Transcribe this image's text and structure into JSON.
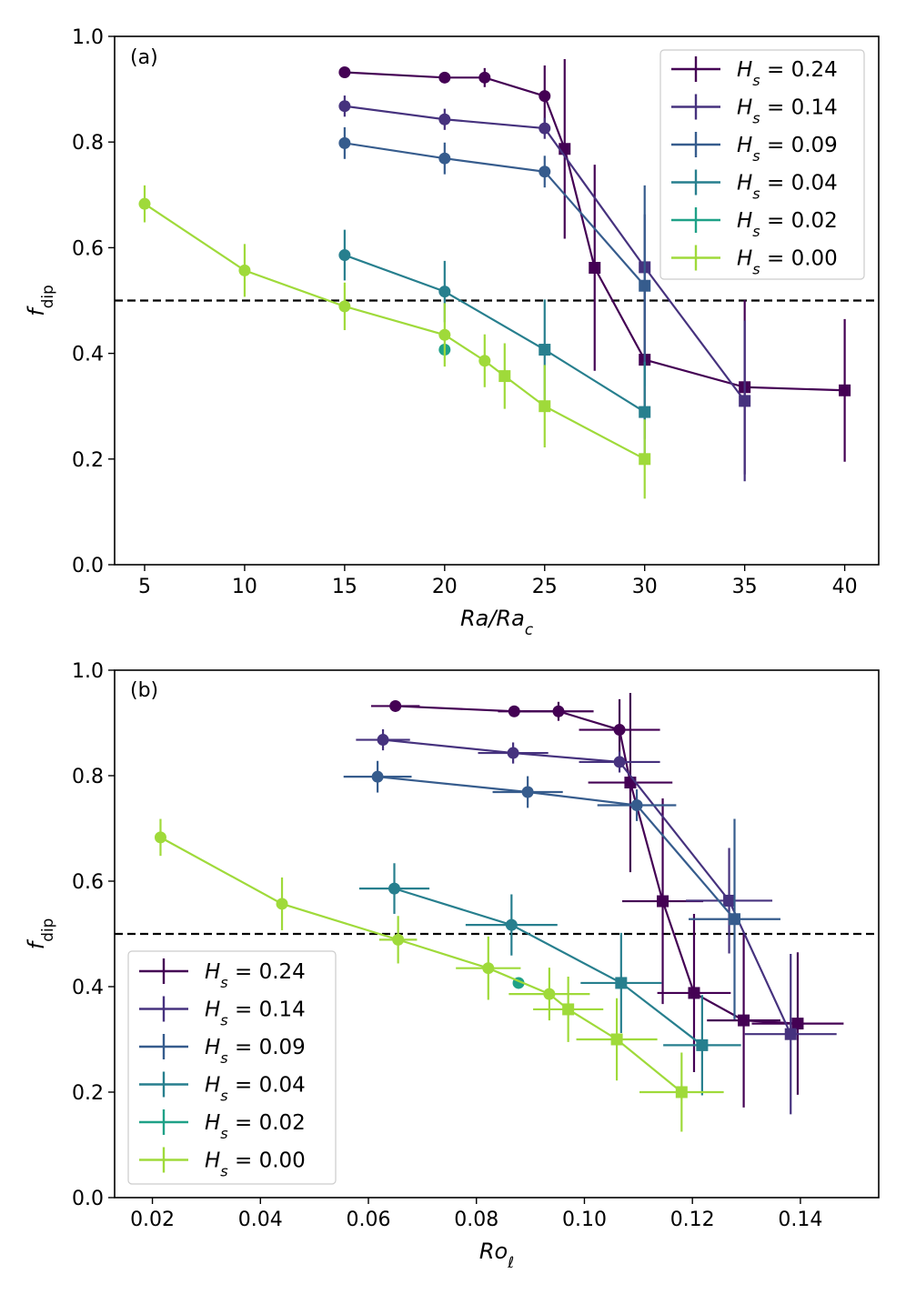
{
  "chart_data": [
    {
      "type": "line",
      "panel_label": "(a)",
      "xlabel": "Ra/Ra_c",
      "xlabel_main": "Ra/Ra",
      "xlabel_sub": "c",
      "ylabel_main": "f",
      "ylabel_sub": "dip",
      "xlim": [
        3.5,
        41.7
      ],
      "ylim": [
        0.0,
        1.0
      ],
      "xticks": [
        "5",
        "10",
        "15",
        "20",
        "25",
        "30",
        "35",
        "40"
      ],
      "xtick_values": [
        5,
        10,
        15,
        20,
        25,
        30,
        35,
        40
      ],
      "yticks": [
        "0.0",
        "0.2",
        "0.4",
        "0.6",
        "0.8",
        "1.0"
      ],
      "ytick_values": [
        0.0,
        0.2,
        0.4,
        0.6,
        0.8,
        1.0
      ],
      "reference_line_y": 0.5,
      "legend_position": "top-right",
      "series": [
        {
          "name": "H_s = 0.24",
          "label_prefix": "H",
          "label_sub": "s",
          "label_value": " = 0.24",
          "color": "#440154",
          "points": [
            {
              "x": 15,
              "y": 0.932,
              "yerr": 0.0,
              "marker": "circle"
            },
            {
              "x": 20,
              "y": 0.922,
              "yerr": 0.0,
              "marker": "circle"
            },
            {
              "x": 22,
              "y": 0.922,
              "yerr": 0.018,
              "marker": "circle"
            },
            {
              "x": 25,
              "y": 0.887,
              "yerr": 0.058,
              "marker": "circle"
            },
            {
              "x": 26,
              "y": 0.787,
              "yerr": 0.17,
              "marker": "square"
            },
            {
              "x": 27.5,
              "y": 0.562,
              "yerr": 0.195,
              "marker": "square"
            },
            {
              "x": 30,
              "y": 0.388,
              "yerr": 0.15,
              "marker": "square"
            },
            {
              "x": 35,
              "y": 0.336,
              "yerr": 0.165,
              "marker": "square"
            },
            {
              "x": 40,
              "y": 0.33,
              "yerr": 0.135,
              "marker": "square"
            }
          ]
        },
        {
          "name": "H_s = 0.14",
          "label_prefix": "H",
          "label_sub": "s",
          "label_value": " = 0.14",
          "color": "#46327e",
          "points": [
            {
              "x": 15,
              "y": 0.868,
              "yerr": 0.02,
              "marker": "circle"
            },
            {
              "x": 20,
              "y": 0.843,
              "yerr": 0.02,
              "marker": "circle"
            },
            {
              "x": 25,
              "y": 0.826,
              "yerr": 0.02,
              "marker": "circle"
            },
            {
              "x": 30,
              "y": 0.563,
              "yerr": 0.1,
              "marker": "square"
            },
            {
              "x": 35,
              "y": 0.31,
              "yerr": 0.152,
              "marker": "square"
            }
          ]
        },
        {
          "name": "H_s = 0.09",
          "label_prefix": "H",
          "label_sub": "s",
          "label_value": " = 0.09",
          "color": "#365c8d",
          "points": [
            {
              "x": 15,
              "y": 0.798,
              "yerr": 0.03,
              "marker": "circle"
            },
            {
              "x": 20,
              "y": 0.769,
              "yerr": 0.03,
              "marker": "circle"
            },
            {
              "x": 25,
              "y": 0.744,
              "yerr": 0.03,
              "marker": "circle"
            },
            {
              "x": 30,
              "y": 0.528,
              "yerr": 0.19,
              "marker": "square"
            }
          ]
        },
        {
          "name": "H_s = 0.04",
          "label_prefix": "H",
          "label_sub": "s",
          "label_value": " = 0.04",
          "color": "#277f8e",
          "points": [
            {
              "x": 15,
              "y": 0.586,
              "yerr": 0.048,
              "marker": "circle"
            },
            {
              "x": 20,
              "y": 0.517,
              "yerr": 0.058,
              "marker": "circle"
            },
            {
              "x": 25,
              "y": 0.407,
              "yerr": 0.095,
              "marker": "square"
            },
            {
              "x": 30,
              "y": 0.289,
              "yerr": 0.095,
              "marker": "square"
            }
          ]
        },
        {
          "name": "H_s = 0.02",
          "label_prefix": "H",
          "label_sub": "s",
          "label_value": " = 0.02",
          "color": "#1fa187",
          "points": [
            {
              "x": 20,
              "y": 0.407,
              "yerr": 0.0,
              "marker": "circle"
            }
          ]
        },
        {
          "name": "H_s = 0.00",
          "label_prefix": "H",
          "label_sub": "s",
          "label_value": " = 0.00",
          "color": "#9fda3a",
          "points": [
            {
              "x": 5,
              "y": 0.683,
              "yerr": 0.035,
              "marker": "circle"
            },
            {
              "x": 10,
              "y": 0.557,
              "yerr": 0.05,
              "marker": "circle"
            },
            {
              "x": 15,
              "y": 0.489,
              "yerr": 0.045,
              "marker": "circle"
            },
            {
              "x": 20,
              "y": 0.435,
              "yerr": 0.06,
              "marker": "circle"
            },
            {
              "x": 22,
              "y": 0.386,
              "yerr": 0.05,
              "marker": "circle"
            },
            {
              "x": 23,
              "y": 0.357,
              "yerr": 0.062,
              "marker": "square"
            },
            {
              "x": 25,
              "y": 0.3,
              "yerr": 0.078,
              "marker": "square"
            },
            {
              "x": 30,
              "y": 0.2,
              "yerr": 0.075,
              "marker": "square"
            }
          ]
        }
      ]
    },
    {
      "type": "line",
      "panel_label": "(b)",
      "xlabel": "Ro_ℓ",
      "xlabel_main": "Ro",
      "xlabel_sub": "ℓ",
      "ylabel_main": "f",
      "ylabel_sub": "dip",
      "xlim": [
        0.013,
        0.1545
      ],
      "ylim": [
        0.0,
        1.0
      ],
      "xticks": [
        "0.02",
        "0.04",
        "0.06",
        "0.08",
        "0.10",
        "0.12",
        "0.14"
      ],
      "xtick_values": [
        0.02,
        0.04,
        0.06,
        0.08,
        0.1,
        0.12,
        0.14
      ],
      "yticks": [
        "0.0",
        "0.2",
        "0.4",
        "0.6",
        "0.8",
        "1.0"
      ],
      "ytick_values": [
        0.0,
        0.2,
        0.4,
        0.6,
        0.8,
        1.0
      ],
      "reference_line_y": 0.5,
      "legend_position": "bottom-left",
      "series": [
        {
          "name": "H_s = 0.24",
          "label_prefix": "H",
          "label_sub": "s",
          "label_value": " = 0.24",
          "color": "#440154",
          "points": [
            {
              "x": 0.065,
              "y": 0.932,
              "xerr": 0.0045,
              "yerr": 0.0,
              "marker": "circle"
            },
            {
              "x": 0.087,
              "y": 0.922,
              "xerr": 0.003,
              "yerr": 0.0,
              "marker": "circle"
            },
            {
              "x": 0.0952,
              "y": 0.922,
              "xerr": 0.0065,
              "yerr": 0.018,
              "marker": "circle"
            },
            {
              "x": 0.1065,
              "y": 0.887,
              "xerr": 0.0075,
              "yerr": 0.058,
              "marker": "circle"
            },
            {
              "x": 0.1085,
              "y": 0.787,
              "xerr": 0.0078,
              "yerr": 0.17,
              "marker": "square"
            },
            {
              "x": 0.1145,
              "y": 0.562,
              "xerr": 0.0075,
              "yerr": 0.195,
              "marker": "square"
            },
            {
              "x": 0.1203,
              "y": 0.388,
              "xerr": 0.0068,
              "yerr": 0.15,
              "marker": "square"
            },
            {
              "x": 0.1295,
              "y": 0.336,
              "xerr": 0.0068,
              "yerr": 0.165,
              "marker": "square"
            },
            {
              "x": 0.1395,
              "y": 0.33,
              "xerr": 0.0085,
              "yerr": 0.135,
              "marker": "square"
            }
          ]
        },
        {
          "name": "H_s = 0.14",
          "label_prefix": "H",
          "label_sub": "s",
          "label_value": " = 0.14",
          "color": "#46327e",
          "points": [
            {
              "x": 0.0627,
              "y": 0.868,
              "xerr": 0.005,
              "yerr": 0.02,
              "marker": "circle"
            },
            {
              "x": 0.0868,
              "y": 0.843,
              "xerr": 0.0065,
              "yerr": 0.02,
              "marker": "circle"
            },
            {
              "x": 0.1065,
              "y": 0.826,
              "xerr": 0.0075,
              "yerr": 0.02,
              "marker": "circle"
            },
            {
              "x": 0.1268,
              "y": 0.563,
              "xerr": 0.008,
              "yerr": 0.1,
              "marker": "square"
            },
            {
              "x": 0.1382,
              "y": 0.31,
              "xerr": 0.0085,
              "yerr": 0.152,
              "marker": "square"
            }
          ]
        },
        {
          "name": "H_s = 0.09",
          "label_prefix": "H",
          "label_sub": "s",
          "label_value": " = 0.09",
          "color": "#365c8d",
          "points": [
            {
              "x": 0.0617,
              "y": 0.798,
              "xerr": 0.0063,
              "yerr": 0.03,
              "marker": "circle"
            },
            {
              "x": 0.0895,
              "y": 0.769,
              "xerr": 0.0065,
              "yerr": 0.03,
              "marker": "circle"
            },
            {
              "x": 0.1097,
              "y": 0.744,
              "xerr": 0.0073,
              "yerr": 0.03,
              "marker": "circle"
            },
            {
              "x": 0.1278,
              "y": 0.528,
              "xerr": 0.0085,
              "yerr": 0.19,
              "marker": "square"
            }
          ]
        },
        {
          "name": "H_s = 0.04",
          "label_prefix": "H",
          "label_sub": "s",
          "label_value": " = 0.04",
          "color": "#277f8e",
          "points": [
            {
              "x": 0.0648,
              "y": 0.586,
              "xerr": 0.0065,
              "yerr": 0.048,
              "marker": "circle"
            },
            {
              "x": 0.0865,
              "y": 0.517,
              "xerr": 0.0085,
              "yerr": 0.058,
              "marker": "circle"
            },
            {
              "x": 0.1068,
              "y": 0.407,
              "xerr": 0.0075,
              "yerr": 0.095,
              "marker": "square"
            },
            {
              "x": 0.1218,
              "y": 0.289,
              "xerr": 0.0072,
              "yerr": 0.095,
              "marker": "square"
            }
          ]
        },
        {
          "name": "H_s = 0.02",
          "label_prefix": "H",
          "label_sub": "s",
          "label_value": " = 0.02",
          "color": "#1fa187",
          "points": [
            {
              "x": 0.0878,
              "y": 0.407,
              "xerr": 0.0,
              "yerr": 0.0,
              "marker": "circle"
            }
          ]
        },
        {
          "name": "H_s = 0.00",
          "label_prefix": "H",
          "label_sub": "s",
          "label_value": " = 0.00",
          "color": "#9fda3a",
          "points": [
            {
              "x": 0.0215,
              "y": 0.683,
              "xerr": 0.0008,
              "yerr": 0.035,
              "marker": "circle"
            },
            {
              "x": 0.044,
              "y": 0.557,
              "xerr": 0.0005,
              "yerr": 0.05,
              "marker": "circle"
            },
            {
              "x": 0.0655,
              "y": 0.489,
              "xerr": 0.0035,
              "yerr": 0.045,
              "marker": "circle"
            },
            {
              "x": 0.0822,
              "y": 0.435,
              "xerr": 0.006,
              "yerr": 0.06,
              "marker": "circle"
            },
            {
              "x": 0.0935,
              "y": 0.386,
              "xerr": 0.0075,
              "yerr": 0.05,
              "marker": "circle"
            },
            {
              "x": 0.097,
              "y": 0.357,
              "xerr": 0.0065,
              "yerr": 0.062,
              "marker": "square"
            },
            {
              "x": 0.106,
              "y": 0.3,
              "xerr": 0.0075,
              "yerr": 0.078,
              "marker": "square"
            },
            {
              "x": 0.118,
              "y": 0.2,
              "xerr": 0.0078,
              "yerr": 0.075,
              "marker": "square"
            }
          ]
        }
      ]
    }
  ]
}
